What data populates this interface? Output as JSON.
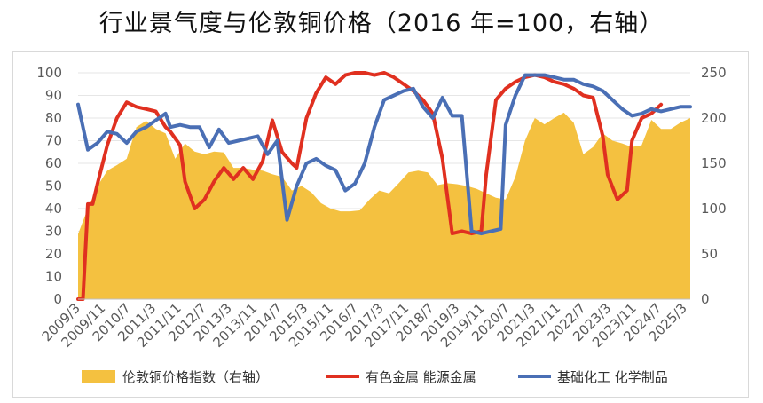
{
  "title": "行业景气度与伦敦铜价格（2016 年=100，右轴）",
  "colors": {
    "area": "#f4c140",
    "red": "#e03020",
    "blue": "#4a6fb5",
    "axis": "#bfbfbf",
    "grid": "#e6e6e6"
  },
  "chart_data": {
    "type": "line",
    "title": "行业景气度与伦敦铜价格（2016 年=100，右轴）",
    "x_tick_labels": [
      "2009/3",
      "2009/11",
      "2010/7",
      "2011/3",
      "2011/11",
      "2012/7",
      "2013/3",
      "2013/11",
      "2014/7",
      "2015/3",
      "2015/11",
      "2016/7",
      "2017/3",
      "2017/11",
      "2018/7",
      "2019/3",
      "2019/11",
      "2020/7",
      "2021/3",
      "2021/11",
      "2022/7",
      "2023/3",
      "2023/11",
      "2024/7",
      "2025/3"
    ],
    "y_left": {
      "ylim": [
        0,
        100
      ],
      "ticks": [
        0,
        10,
        20,
        30,
        40,
        50,
        60,
        70,
        80,
        90,
        100
      ]
    },
    "y_right": {
      "ylim": [
        0,
        250
      ],
      "ticks": [
        0,
        50,
        100,
        150,
        200,
        250
      ]
    },
    "legend_position": "bottom",
    "series": [
      {
        "name": "伦敦铜价格指数（右轴）",
        "kind": "area",
        "axis": "right",
        "points": [
          [
            0,
            72
          ],
          [
            2,
            100
          ],
          [
            4,
            125
          ],
          [
            6,
            142
          ],
          [
            8,
            148
          ],
          [
            10,
            155
          ],
          [
            12,
            190
          ],
          [
            14,
            197
          ],
          [
            16,
            188
          ],
          [
            18,
            183
          ],
          [
            20,
            155
          ],
          [
            22,
            172
          ],
          [
            24,
            163
          ],
          [
            26,
            160
          ],
          [
            28,
            163
          ],
          [
            30,
            162
          ],
          [
            32,
            145
          ],
          [
            34,
            145
          ],
          [
            36,
            143
          ],
          [
            38,
            142
          ],
          [
            40,
            138
          ],
          [
            42,
            135
          ],
          [
            44,
            120
          ],
          [
            46,
            125
          ],
          [
            48,
            118
          ],
          [
            50,
            106
          ],
          [
            52,
            100
          ],
          [
            54,
            97
          ],
          [
            56,
            97
          ],
          [
            58,
            98
          ],
          [
            60,
            110
          ],
          [
            62,
            120
          ],
          [
            64,
            117
          ],
          [
            66,
            128
          ],
          [
            68,
            140
          ],
          [
            70,
            142
          ],
          [
            72,
            140
          ],
          [
            74,
            126
          ],
          [
            76,
            128
          ],
          [
            78,
            127
          ],
          [
            80,
            125
          ],
          [
            82,
            122
          ],
          [
            84,
            117
          ],
          [
            86,
            112
          ],
          [
            88,
            110
          ],
          [
            90,
            135
          ],
          [
            92,
            175
          ],
          [
            94,
            200
          ],
          [
            96,
            193
          ],
          [
            98,
            200
          ],
          [
            100,
            206
          ],
          [
            102,
            195
          ],
          [
            104,
            160
          ],
          [
            106,
            168
          ],
          [
            108,
            183
          ],
          [
            110,
            175
          ],
          [
            112,
            172
          ],
          [
            114,
            168
          ],
          [
            116,
            170
          ],
          [
            118,
            198
          ],
          [
            120,
            188
          ],
          [
            122,
            188
          ],
          [
            124,
            195
          ],
          [
            126,
            200
          ]
        ]
      },
      {
        "name": "有色金属 能源金属",
        "kind": "line",
        "axis": "left",
        "points": [
          [
            0,
            0
          ],
          [
            1,
            0
          ],
          [
            2,
            42
          ],
          [
            3,
            42
          ],
          [
            4,
            51
          ],
          [
            6,
            68
          ],
          [
            8,
            80
          ],
          [
            10,
            87
          ],
          [
            12,
            85
          ],
          [
            14,
            84
          ],
          [
            16,
            83
          ],
          [
            18,
            76
          ],
          [
            19,
            74
          ],
          [
            21,
            68
          ],
          [
            22,
            52
          ],
          [
            24,
            40
          ],
          [
            26,
            44
          ],
          [
            28,
            52
          ],
          [
            30,
            58
          ],
          [
            32,
            53
          ],
          [
            34,
            58
          ],
          [
            36,
            53
          ],
          [
            38,
            61
          ],
          [
            40,
            79
          ],
          [
            42,
            65
          ],
          [
            44,
            60
          ],
          [
            45,
            58
          ],
          [
            47,
            80
          ],
          [
            49,
            91
          ],
          [
            51,
            98
          ],
          [
            53,
            95
          ],
          [
            55,
            99
          ],
          [
            57,
            100
          ],
          [
            59,
            100
          ],
          [
            61,
            99
          ],
          [
            63,
            100
          ],
          [
            65,
            98
          ],
          [
            67,
            95
          ],
          [
            69,
            92
          ],
          [
            71,
            88
          ],
          [
            73,
            82
          ],
          [
            75,
            62
          ],
          [
            77,
            29
          ],
          [
            79,
            30
          ],
          [
            81,
            29
          ],
          [
            83,
            30
          ],
          [
            84,
            55
          ],
          [
            86,
            88
          ],
          [
            88,
            93
          ],
          [
            90,
            96
          ],
          [
            92,
            98
          ],
          [
            94,
            99
          ],
          [
            96,
            98
          ],
          [
            98,
            96
          ],
          [
            100,
            95
          ],
          [
            102,
            93
          ],
          [
            104,
            90
          ],
          [
            106,
            89
          ],
          [
            108,
            72
          ],
          [
            109,
            55
          ],
          [
            111,
            44
          ],
          [
            113,
            48
          ],
          [
            114,
            70
          ],
          [
            116,
            80
          ],
          [
            118,
            82
          ],
          [
            120,
            86
          ]
        ]
      },
      {
        "name": "基础化工 化学制品",
        "kind": "line",
        "axis": "left",
        "points": [
          [
            0,
            86
          ],
          [
            2,
            66
          ],
          [
            4,
            69
          ],
          [
            6,
            74
          ],
          [
            8,
            73
          ],
          [
            10,
            69
          ],
          [
            12,
            74
          ],
          [
            14,
            76
          ],
          [
            16,
            79
          ],
          [
            18,
            82
          ],
          [
            19,
            76
          ],
          [
            21,
            77
          ],
          [
            23,
            76
          ],
          [
            25,
            76
          ],
          [
            27,
            67
          ],
          [
            29,
            75
          ],
          [
            31,
            69
          ],
          [
            33,
            70
          ],
          [
            35,
            71
          ],
          [
            37,
            72
          ],
          [
            39,
            64
          ],
          [
            41,
            70
          ],
          [
            43,
            35
          ],
          [
            45,
            50
          ],
          [
            47,
            60
          ],
          [
            49,
            62
          ],
          [
            51,
            59
          ],
          [
            53,
            57
          ],
          [
            55,
            48
          ],
          [
            57,
            51
          ],
          [
            59,
            60
          ],
          [
            61,
            76
          ],
          [
            63,
            88
          ],
          [
            65,
            90
          ],
          [
            67,
            92
          ],
          [
            69,
            93
          ],
          [
            71,
            85
          ],
          [
            73,
            80
          ],
          [
            75,
            89
          ],
          [
            77,
            81
          ],
          [
            79,
            81
          ],
          [
            81,
            30
          ],
          [
            83,
            29
          ],
          [
            85,
            30
          ],
          [
            87,
            31
          ],
          [
            88,
            77
          ],
          [
            90,
            90
          ],
          [
            92,
            99
          ],
          [
            94,
            99
          ],
          [
            96,
            99
          ],
          [
            98,
            98
          ],
          [
            100,
            97
          ],
          [
            102,
            97
          ],
          [
            104,
            95
          ],
          [
            106,
            94
          ],
          [
            108,
            92
          ],
          [
            110,
            88
          ],
          [
            112,
            84
          ],
          [
            114,
            81
          ],
          [
            116,
            82
          ],
          [
            118,
            84
          ],
          [
            120,
            83
          ],
          [
            122,
            84
          ],
          [
            124,
            85
          ],
          [
            126,
            85
          ]
        ]
      }
    ]
  }
}
